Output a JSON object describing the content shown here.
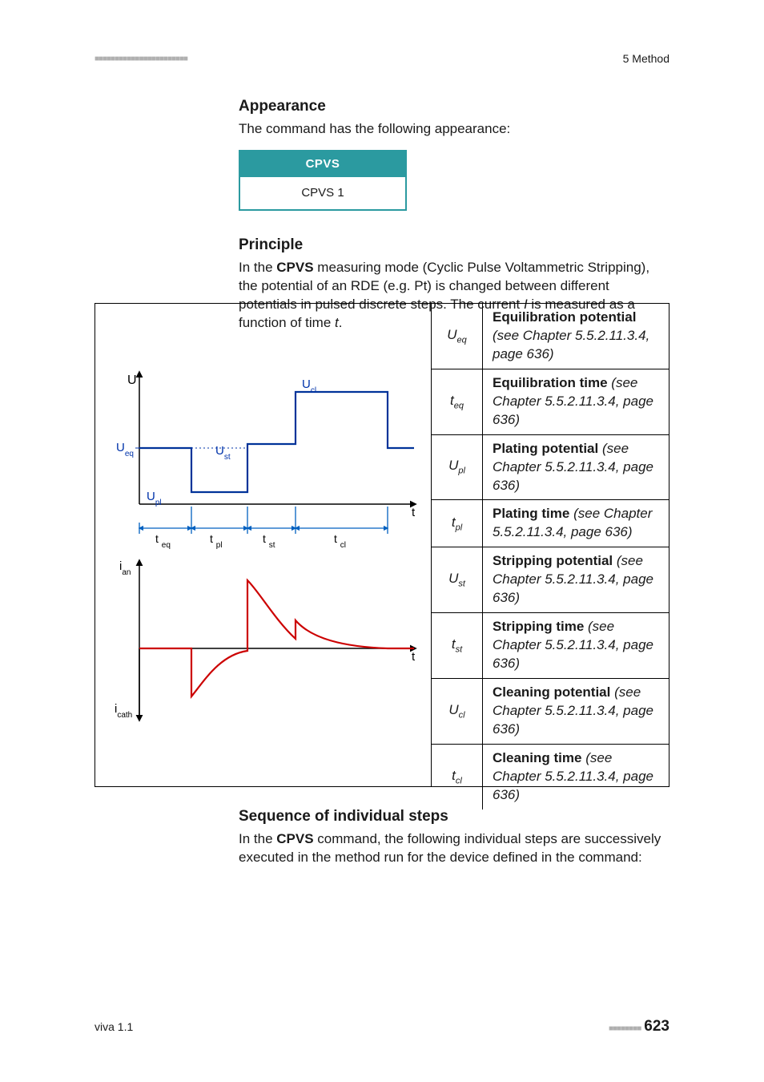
{
  "header": {
    "dashes": "■■■■■■■■■■■■■■■■■■■■■■■",
    "section": "5 Method"
  },
  "sections": {
    "appearance": {
      "title": "Appearance",
      "intro": "The command has the following appearance:",
      "box_header": "CPVS",
      "box_body": "CPVS 1"
    },
    "principle": {
      "title": "Principle",
      "intro_pre": "In the ",
      "intro_cmd": "CPVS",
      "intro_post1": " measuring mode (Cyclic Pulse Voltammetric Stripping), the potential of an RDE (e.g. Pt) is changed between different potentials in pulsed discrete steps. The current ",
      "intro_i": "I",
      "intro_post2": " is measured as a function of time ",
      "intro_t": "t",
      "intro_end": "."
    },
    "sequence": {
      "title": "Sequence of individual steps",
      "intro_pre": "In the ",
      "intro_cmd": "CPVS",
      "intro_post": " command, the following individual steps are successively executed in the method run for the device defined in the command:"
    }
  },
  "params": [
    {
      "sym": "U",
      "sub": "eq",
      "title": "Equilibration potential",
      "ref": "(see Chapter 5.5.2.11.3.4, page 636)"
    },
    {
      "sym": "t",
      "sub": "eq",
      "title": "Equilibration time",
      "ref": "(see Chapter 5.5.2.11.3.4, page 636)"
    },
    {
      "sym": "U",
      "sub": "pl",
      "title": "Plating potential",
      "ref": "(see Chapter 5.5.2.11.3.4, page 636)"
    },
    {
      "sym": "t",
      "sub": "pl",
      "title": "Plating time",
      "ref": "(see Chapter 5.5.2.11.3.4, page 636)"
    },
    {
      "sym": "U",
      "sub": "st",
      "title": "Stripping potential",
      "ref": "(see Chapter 5.5.2.11.3.4, page 636)"
    },
    {
      "sym": "t",
      "sub": "st",
      "title": "Stripping time",
      "ref": "(see Chapter 5.5.2.11.3.4, page 636)"
    },
    {
      "sym": "U",
      "sub": "cl",
      "title": "Cleaning potential",
      "ref": "(see Chapter 5.5.2.11.3.4, page 636)"
    },
    {
      "sym": "t",
      "sub": "cl",
      "title": "Cleaning time",
      "ref": "(see Chapter 5.5.2.11.3.4, page 636)"
    }
  ],
  "chart": {
    "colors": {
      "axis": "#000000",
      "blue": "#003399",
      "red": "#cc0000",
      "dimarrow": "#0060c0",
      "bluetext": "#0033aa"
    },
    "labels": {
      "U": "U",
      "Ucl": "U",
      "Ucl_sub": "cl",
      "Ueq": "U",
      "Ueq_sub": "eq",
      "Ust": "U",
      "Ust_sub": "st",
      "Upl": "U",
      "Upl_sub": "pl",
      "teq": "t",
      "teq_sub": "eq",
      "tpl": "t",
      "tpl_sub": "pl",
      "tst": "t",
      "tst_sub": "st",
      "tcl": "t",
      "tcl_sub": "cl",
      "ian": "i",
      "ian_sub": "an",
      "icath": "i",
      "icath_sub": "cath",
      "t": "t"
    }
  },
  "footer": {
    "left": "viva 1.1",
    "dashes": "■■■■■■■■",
    "page": "623"
  }
}
